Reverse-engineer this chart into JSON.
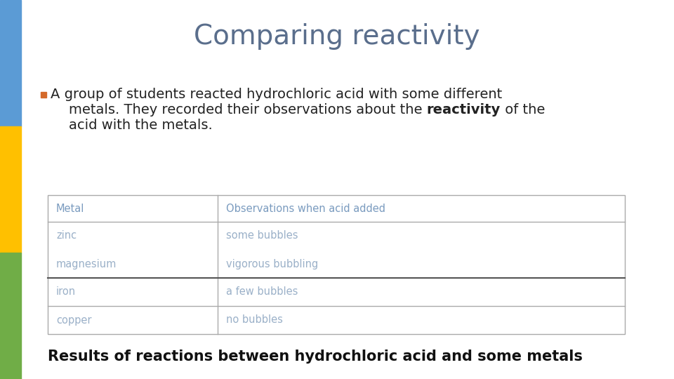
{
  "title": "Comparing reactivity",
  "title_color": "#5a6e8c",
  "title_fontsize": 28,
  "title_fontweight": "normal",
  "bullet_text_line1": "A group of students reacted hydrochloric acid with some different",
  "bullet_text_line2_pre": "metals. They recorded their observations about the ",
  "bullet_text_bold": "reactivity",
  "bullet_text_line2_post": " of the",
  "bullet_text_line3": "acid with the metals.",
  "bullet_color": "#d4692a",
  "text_color": "#222222",
  "text_fontsize": 14,
  "table_headers": [
    "Metal",
    "Observations when acid added"
  ],
  "table_data": [
    [
      "zinc",
      "some bubbles"
    ],
    [
      "magnesium",
      "vigorous bubbling"
    ],
    [
      "iron",
      "a few bubbles"
    ],
    [
      "copper",
      "no bubbles"
    ]
  ],
  "table_header_color": "#7a9bbf",
  "table_text_color": "#9ab0c8",
  "table_header_fontsize": 10.5,
  "table_data_fontsize": 10.5,
  "caption": "Results of reactions between hydrochloric acid and some metals",
  "caption_fontsize": 15,
  "caption_fontweight": "bold",
  "caption_color": "#111111",
  "sidebar_colors": [
    "#5b9bd5",
    "#ffc000",
    "#70ad47"
  ],
  "background_color": "#ffffff"
}
